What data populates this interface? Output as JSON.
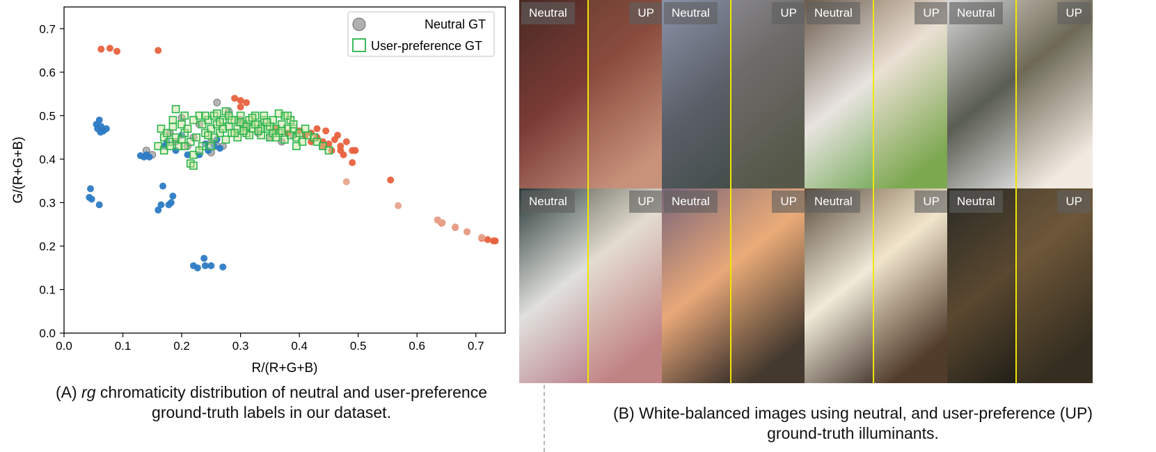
{
  "panel_a": {
    "caption_label": "(A)",
    "caption_em": "rg",
    "caption_line1": "chromaticity distribution of neutral and user-preference",
    "caption_line2": "ground-truth labels in our dataset."
  },
  "panel_b": {
    "caption_line1": "(B) White-balanced images using neutral, and user-preference (UP)",
    "caption_line2": "ground-truth illuminants.",
    "left_label": "Neutral",
    "right_label": "UP",
    "photos": [
      {
        "name": "cupcakes",
        "colors": [
          "#4a2a24",
          "#7a3b35",
          "#c08a7a"
        ]
      },
      {
        "name": "fire-route-sign",
        "colors": [
          "#8a93a8",
          "#5b5f68",
          "#3f4a44"
        ]
      },
      {
        "name": "salad-bowl",
        "colors": [
          "#6b5a4a",
          "#e8e4e0",
          "#6aa44a"
        ]
      },
      {
        "name": "snowy-stairs",
        "colors": [
          "#d8d8d8",
          "#5a5d52",
          "#efefef"
        ]
      },
      {
        "name": "candy-bowl",
        "colors": [
          "#2a3a38",
          "#e0e0dc",
          "#b87a86"
        ]
      },
      {
        "name": "sunset-road",
        "colors": [
          "#7a6478",
          "#e8a878",
          "#2a2624"
        ]
      },
      {
        "name": "hotel-lamps",
        "colors": [
          "#5a4a3a",
          "#f0ead8",
          "#3a2a22"
        ]
      },
      {
        "name": "night-bench",
        "colors": [
          "#2a2a24",
          "#5a4830",
          "#1a1a14"
        ]
      }
    ]
  },
  "chart_data": {
    "type": "scatter",
    "xlabel": "R/(R+G+B)",
    "ylabel": "G/(R+G+B)",
    "xlim": [
      0.0,
      0.75
    ],
    "ylim": [
      0.0,
      0.75
    ],
    "xticks": [
      "0.0",
      "0.1",
      "0.2",
      "0.3",
      "0.4",
      "0.5",
      "0.6",
      "0.7"
    ],
    "yticks": [
      "0.0",
      "0.1",
      "0.2",
      "0.3",
      "0.4",
      "0.5",
      "0.6",
      "0.7"
    ],
    "legend_position": "top-right",
    "series": [
      {
        "name": "Neutral GT",
        "marker": "circle",
        "color": "#b0b0b0",
        "show_in_legend": true,
        "points": [
          [
            0.2,
            0.495
          ],
          [
            0.22,
            0.45
          ],
          [
            0.25,
            0.44
          ],
          [
            0.26,
            0.43
          ],
          [
            0.27,
            0.43
          ],
          [
            0.25,
            0.415
          ],
          [
            0.14,
            0.42
          ],
          [
            0.15,
            0.41
          ],
          [
            0.18,
            0.46
          ],
          [
            0.23,
            0.48
          ],
          [
            0.26,
            0.53
          ],
          [
            0.28,
            0.51
          ],
          [
            0.3,
            0.49
          ],
          [
            0.31,
            0.475
          ],
          [
            0.33,
            0.46
          ],
          [
            0.35,
            0.45
          ],
          [
            0.37,
            0.44
          ],
          [
            0.39,
            0.455
          ],
          [
            0.21,
            0.43
          ],
          [
            0.19,
            0.44
          ]
        ]
      },
      {
        "name": "blue cluster",
        "marker": "circle",
        "color": "#2c7bc4",
        "show_in_legend": false,
        "points": [
          [
            0.055,
            0.48
          ],
          [
            0.057,
            0.47
          ],
          [
            0.06,
            0.49
          ],
          [
            0.063,
            0.475
          ],
          [
            0.067,
            0.465
          ],
          [
            0.072,
            0.47
          ],
          [
            0.062,
            0.462
          ],
          [
            0.045,
            0.332
          ],
          [
            0.043,
            0.312
          ],
          [
            0.047,
            0.308
          ],
          [
            0.06,
            0.295
          ],
          [
            0.16,
            0.283
          ],
          [
            0.165,
            0.295
          ],
          [
            0.168,
            0.338
          ],
          [
            0.178,
            0.295
          ],
          [
            0.182,
            0.3
          ],
          [
            0.185,
            0.315
          ],
          [
            0.22,
            0.155
          ],
          [
            0.227,
            0.15
          ],
          [
            0.238,
            0.172
          ],
          [
            0.24,
            0.155
          ],
          [
            0.25,
            0.155
          ],
          [
            0.27,
            0.152
          ],
          [
            0.13,
            0.408
          ],
          [
            0.136,
            0.405
          ],
          [
            0.14,
            0.41
          ],
          [
            0.145,
            0.405
          ],
          [
            0.17,
            0.43
          ],
          [
            0.175,
            0.44
          ],
          [
            0.19,
            0.42
          ],
          [
            0.21,
            0.41
          ],
          [
            0.24,
            0.435
          ],
          [
            0.245,
            0.42
          ],
          [
            0.255,
            0.43
          ],
          [
            0.26,
            0.445
          ],
          [
            0.265,
            0.425
          ],
          [
            0.2,
            0.455
          ],
          [
            0.23,
            0.41
          ]
        ]
      },
      {
        "name": "orange cluster",
        "marker": "circle",
        "color": "#e8613e",
        "show_in_legend": false,
        "points": [
          [
            0.063,
            0.653
          ],
          [
            0.078,
            0.655
          ],
          [
            0.09,
            0.648
          ],
          [
            0.16,
            0.65
          ],
          [
            0.29,
            0.54
          ],
          [
            0.3,
            0.535
          ],
          [
            0.31,
            0.53
          ],
          [
            0.3,
            0.52
          ],
          [
            0.36,
            0.47
          ],
          [
            0.38,
            0.46
          ],
          [
            0.4,
            0.465
          ],
          [
            0.41,
            0.455
          ],
          [
            0.42,
            0.46
          ],
          [
            0.43,
            0.45
          ],
          [
            0.44,
            0.44
          ],
          [
            0.45,
            0.435
          ],
          [
            0.46,
            0.445
          ],
          [
            0.47,
            0.43
          ],
          [
            0.47,
            0.42
          ],
          [
            0.475,
            0.41
          ],
          [
            0.43,
            0.47
          ],
          [
            0.445,
            0.465
          ],
          [
            0.465,
            0.455
          ],
          [
            0.48,
            0.44
          ],
          [
            0.455,
            0.42
          ],
          [
            0.44,
            0.43
          ],
          [
            0.42,
            0.44
          ],
          [
            0.49,
            0.42
          ],
          [
            0.495,
            0.42
          ],
          [
            0.49,
            0.392
          ],
          [
            0.555,
            0.352
          ],
          [
            0.635,
            0.26
          ],
          [
            0.642,
            0.253
          ],
          [
            0.665,
            0.243
          ],
          [
            0.685,
            0.233
          ],
          [
            0.71,
            0.218
          ],
          [
            0.72,
            0.215
          ],
          [
            0.73,
            0.212
          ],
          [
            0.733,
            0.212
          ]
        ]
      },
      {
        "name": "light-orange points",
        "marker": "circle",
        "color": "#e7a38c",
        "show_in_legend": false,
        "points": [
          [
            0.48,
            0.348
          ],
          [
            0.568,
            0.293
          ],
          [
            0.635,
            0.26
          ],
          [
            0.643,
            0.254
          ],
          [
            0.665,
            0.244
          ],
          [
            0.685,
            0.233
          ],
          [
            0.71,
            0.22
          ]
        ]
      },
      {
        "name": "User-preference GT",
        "marker": "square",
        "color": "#29b44a",
        "show_in_legend": true,
        "points": [
          [
            0.165,
            0.47
          ],
          [
            0.17,
            0.45
          ],
          [
            0.175,
            0.46
          ],
          [
            0.18,
            0.44
          ],
          [
            0.185,
            0.475
          ],
          [
            0.19,
            0.515
          ],
          [
            0.19,
            0.45
          ],
          [
            0.195,
            0.43
          ],
          [
            0.2,
            0.48
          ],
          [
            0.205,
            0.46
          ],
          [
            0.21,
            0.47
          ],
          [
            0.215,
            0.44
          ],
          [
            0.215,
            0.39
          ],
          [
            0.22,
            0.385
          ],
          [
            0.22,
            0.41
          ],
          [
            0.225,
            0.45
          ],
          [
            0.23,
            0.5
          ],
          [
            0.235,
            0.48
          ],
          [
            0.24,
            0.46
          ],
          [
            0.245,
            0.49
          ],
          [
            0.25,
            0.47
          ],
          [
            0.255,
            0.5
          ],
          [
            0.26,
            0.48
          ],
          [
            0.265,
            0.46
          ],
          [
            0.27,
            0.49
          ],
          [
            0.275,
            0.51
          ],
          [
            0.28,
            0.475
          ],
          [
            0.285,
            0.46
          ],
          [
            0.29,
            0.49
          ],
          [
            0.295,
            0.47
          ],
          [
            0.3,
            0.5
          ],
          [
            0.305,
            0.48
          ],
          [
            0.31,
            0.46
          ],
          [
            0.315,
            0.49
          ],
          [
            0.32,
            0.47
          ],
          [
            0.325,
            0.5
          ],
          [
            0.33,
            0.48
          ],
          [
            0.335,
            0.455
          ],
          [
            0.34,
            0.49
          ],
          [
            0.345,
            0.47
          ],
          [
            0.35,
            0.45
          ],
          [
            0.355,
            0.49
          ],
          [
            0.36,
            0.47
          ],
          [
            0.365,
            0.46
          ],
          [
            0.37,
            0.48
          ],
          [
            0.375,
            0.5
          ],
          [
            0.38,
            0.47
          ],
          [
            0.385,
            0.455
          ],
          [
            0.39,
            0.47
          ],
          [
            0.395,
            0.45
          ],
          [
            0.4,
            0.46
          ],
          [
            0.405,
            0.44
          ],
          [
            0.415,
            0.455
          ],
          [
            0.425,
            0.45
          ],
          [
            0.43,
            0.44
          ],
          [
            0.44,
            0.43
          ],
          [
            0.45,
            0.42
          ],
          [
            0.16,
            0.43
          ],
          [
            0.17,
            0.42
          ],
          [
            0.18,
            0.43
          ],
          [
            0.205,
            0.43
          ],
          [
            0.235,
            0.43
          ],
          [
            0.255,
            0.45
          ],
          [
            0.275,
            0.445
          ],
          [
            0.295,
            0.45
          ],
          [
            0.315,
            0.455
          ],
          [
            0.335,
            0.47
          ],
          [
            0.355,
            0.46
          ],
          [
            0.375,
            0.445
          ],
          [
            0.395,
            0.43
          ],
          [
            0.205,
            0.5
          ],
          [
            0.22,
            0.49
          ],
          [
            0.24,
            0.5
          ],
          [
            0.26,
            0.505
          ],
          [
            0.28,
            0.5
          ],
          [
            0.3,
            0.485
          ],
          [
            0.32,
            0.495
          ],
          [
            0.34,
            0.5
          ],
          [
            0.365,
            0.505
          ],
          [
            0.385,
            0.49
          ],
          [
            0.23,
            0.42
          ],
          [
            0.25,
            0.43
          ],
          [
            0.27,
            0.47
          ],
          [
            0.29,
            0.46
          ],
          [
            0.31,
            0.475
          ],
          [
            0.33,
            0.465
          ],
          [
            0.35,
            0.475
          ],
          [
            0.37,
            0.465
          ],
          [
            0.39,
            0.48
          ],
          [
            0.41,
            0.47
          ],
          [
            0.185,
            0.49
          ],
          [
            0.2,
            0.445
          ],
          [
            0.245,
            0.455
          ],
          [
            0.265,
            0.485
          ],
          [
            0.285,
            0.49
          ],
          [
            0.305,
            0.465
          ],
          [
            0.325,
            0.48
          ],
          [
            0.345,
            0.485
          ],
          [
            0.36,
            0.45
          ],
          [
            0.38,
            0.5
          ]
        ]
      }
    ]
  }
}
